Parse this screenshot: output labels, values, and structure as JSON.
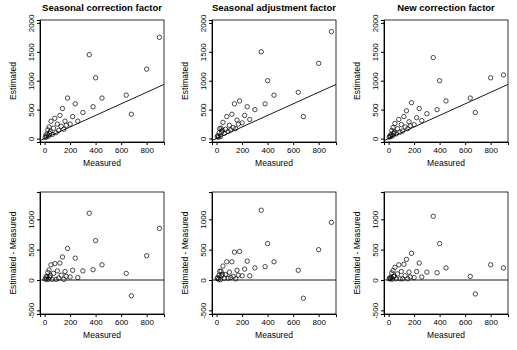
{
  "chart_data": [
    {
      "type": "scatter",
      "title": "Seasonal correction factor",
      "x_label": "Measured",
      "y_label": "Estimated",
      "x": [
        5,
        10,
        15,
        20,
        25,
        30,
        35,
        40,
        45,
        50,
        60,
        70,
        80,
        90,
        100,
        110,
        120,
        130,
        140,
        150,
        160,
        170,
        180,
        200,
        220,
        240,
        260,
        300,
        350,
        380,
        400,
        450,
        640,
        680,
        800,
        900
      ],
      "xlim": [
        -36,
        936
      ],
      "xticks": [
        0,
        200,
        400,
        600,
        800
      ],
      "ylim": [
        -60,
        2050
      ],
      "yticks": [
        0,
        500,
        1000,
        1500,
        2000
      ],
      "series": [
        {
          "color": "#000000",
          "marker": "circle",
          "values": [
            20,
            60,
            30,
            80,
            150,
            40,
            200,
            90,
            120,
            300,
            70,
            180,
            350,
            100,
            250,
            140,
            400,
            210,
            520,
            160,
            300,
            230,
            700,
            250,
            380,
            600,
            300,
            450,
            1450,
            550,
            1050,
            700,
            750,
            420,
            1200,
            1750
          ]
        },
        {
          "type": "line",
          "color": "#000000",
          "line_style": "solid",
          "x": [
            -36,
            936
          ],
          "values": [
            -36,
            936
          ]
        }
      ]
    },
    {
      "type": "scatter",
      "title": "Seasonal adjustment factor",
      "x_label": "Measured",
      "y_label": "Estimated",
      "x": [
        5,
        10,
        15,
        20,
        25,
        30,
        35,
        40,
        45,
        50,
        60,
        70,
        80,
        90,
        100,
        110,
        120,
        130,
        140,
        150,
        160,
        170,
        180,
        200,
        220,
        240,
        260,
        300,
        350,
        380,
        400,
        450,
        640,
        680,
        800,
        900
      ],
      "xlim": [
        -36,
        936
      ],
      "xticks": [
        0,
        200,
        400,
        600,
        800
      ],
      "ylim": [
        -60,
        2050
      ],
      "yticks": [
        0,
        500,
        1000,
        1500,
        2000
      ],
      "series": [
        {
          "color": "#000000",
          "marker": "circle",
          "values": [
            30,
            50,
            25,
            100,
            170,
            35,
            180,
            110,
            140,
            280,
            90,
            160,
            380,
            120,
            230,
            150,
            420,
            190,
            600,
            170,
            320,
            250,
            650,
            270,
            400,
            550,
            330,
            500,
            1500,
            600,
            1000,
            750,
            800,
            380,
            1300,
            1850
          ]
        },
        {
          "type": "line",
          "color": "#000000",
          "line_style": "solid",
          "x": [
            -36,
            936
          ],
          "values": [
            -36,
            936
          ]
        }
      ]
    },
    {
      "type": "scatter",
      "title": "New correction factor",
      "x_label": "Measured",
      "y_label": "Estimated",
      "x": [
        5,
        10,
        15,
        20,
        25,
        30,
        35,
        40,
        45,
        50,
        60,
        70,
        80,
        90,
        100,
        110,
        120,
        130,
        140,
        150,
        160,
        170,
        180,
        200,
        220,
        240,
        260,
        300,
        350,
        380,
        400,
        450,
        640,
        680,
        800,
        900
      ],
      "xlim": [
        -36,
        936
      ],
      "xticks": [
        0,
        200,
        400,
        600,
        800
      ],
      "ylim": [
        -60,
        2050
      ],
      "yticks": [
        0,
        500,
        1000,
        1500,
        2000
      ],
      "series": [
        {
          "color": "#000000",
          "marker": "circle",
          "values": [
            25,
            45,
            35,
            70,
            140,
            45,
            190,
            95,
            110,
            260,
            80,
            170,
            330,
            110,
            240,
            130,
            380,
            200,
            480,
            170,
            290,
            220,
            620,
            240,
            360,
            520,
            310,
            430,
            1400,
            500,
            1000,
            650,
            700,
            450,
            1050,
            1100
          ]
        },
        {
          "type": "line",
          "color": "#000000",
          "line_style": "solid",
          "x": [
            -36,
            936
          ],
          "values": [
            -36,
            936
          ]
        }
      ]
    },
    {
      "type": "scatter",
      "x_label": "Measured",
      "y_label": "Estimated - Measured",
      "x": [
        5,
        10,
        15,
        20,
        25,
        30,
        35,
        40,
        45,
        50,
        60,
        70,
        80,
        90,
        100,
        110,
        120,
        130,
        140,
        150,
        160,
        170,
        180,
        200,
        220,
        240,
        260,
        300,
        350,
        380,
        400,
        450,
        640,
        680,
        800,
        900
      ],
      "xlim": [
        -36,
        936
      ],
      "xticks": [
        0,
        200,
        400,
        600,
        800
      ],
      "ylim": [
        -560,
        1450
      ],
      "yticks": [
        -500,
        0,
        500,
        1000
      ],
      "series": [
        {
          "color": "#000000",
          "marker": "circle",
          "values": [
            15,
            50,
            15,
            60,
            125,
            10,
            165,
            50,
            75,
            250,
            10,
            110,
            270,
            10,
            150,
            30,
            280,
            80,
            380,
            10,
            140,
            60,
            520,
            50,
            160,
            360,
            40,
            150,
            1100,
            170,
            650,
            250,
            110,
            -260,
            400,
            850
          ]
        },
        {
          "type": "line",
          "color": "#000000",
          "line_style": "solid",
          "x": [
            -36,
            936
          ],
          "values": [
            0,
            0
          ]
        }
      ]
    },
    {
      "type": "scatter",
      "x_label": "Measured",
      "y_label": "Estimated - Measured",
      "x": [
        5,
        10,
        15,
        20,
        25,
        30,
        35,
        40,
        45,
        50,
        60,
        70,
        80,
        90,
        100,
        110,
        120,
        130,
        140,
        150,
        160,
        170,
        180,
        200,
        220,
        240,
        260,
        300,
        350,
        380,
        400,
        450,
        640,
        680,
        800,
        900
      ],
      "xlim": [
        -36,
        936
      ],
      "xticks": [
        0,
        200,
        400,
        600,
        800
      ],
      "ylim": [
        -560,
        1450
      ],
      "yticks": [
        -500,
        0,
        500,
        1000
      ],
      "series": [
        {
          "color": "#000000",
          "marker": "circle",
          "values": [
            25,
            40,
            10,
            80,
            145,
            5,
            145,
            70,
            95,
            230,
            30,
            90,
            300,
            30,
            130,
            40,
            300,
            60,
            460,
            20,
            160,
            80,
            470,
            70,
            180,
            310,
            70,
            200,
            1150,
            220,
            600,
            300,
            160,
            -300,
            500,
            950
          ]
        },
        {
          "type": "line",
          "color": "#000000",
          "line_style": "solid",
          "x": [
            -36,
            936
          ],
          "values": [
            0,
            0
          ]
        }
      ]
    },
    {
      "type": "scatter",
      "x_label": "Measured",
      "y_label": "Estimated - Measured",
      "x": [
        5,
        10,
        15,
        20,
        25,
        30,
        35,
        40,
        45,
        50,
        60,
        70,
        80,
        90,
        100,
        110,
        120,
        130,
        140,
        150,
        160,
        170,
        180,
        200,
        220,
        240,
        260,
        300,
        350,
        380,
        400,
        450,
        640,
        680,
        800,
        900
      ],
      "xlim": [
        -36,
        936
      ],
      "xticks": [
        0,
        200,
        400,
        600,
        800
      ],
      "ylim": [
        -560,
        1450
      ],
      "yticks": [
        -500,
        0,
        500,
        1000
      ],
      "series": [
        {
          "color": "#000000",
          "marker": "circle",
          "values": [
            20,
            35,
            20,
            50,
            115,
            15,
            155,
            55,
            65,
            210,
            20,
            100,
            250,
            20,
            140,
            20,
            260,
            70,
            340,
            20,
            130,
            50,
            440,
            40,
            140,
            280,
            50,
            130,
            1050,
            120,
            600,
            200,
            60,
            -230,
            250,
            200
          ]
        },
        {
          "type": "line",
          "color": "#000000",
          "line_style": "solid",
          "x": [
            -36,
            936
          ],
          "values": [
            0,
            0
          ]
        }
      ]
    }
  ]
}
